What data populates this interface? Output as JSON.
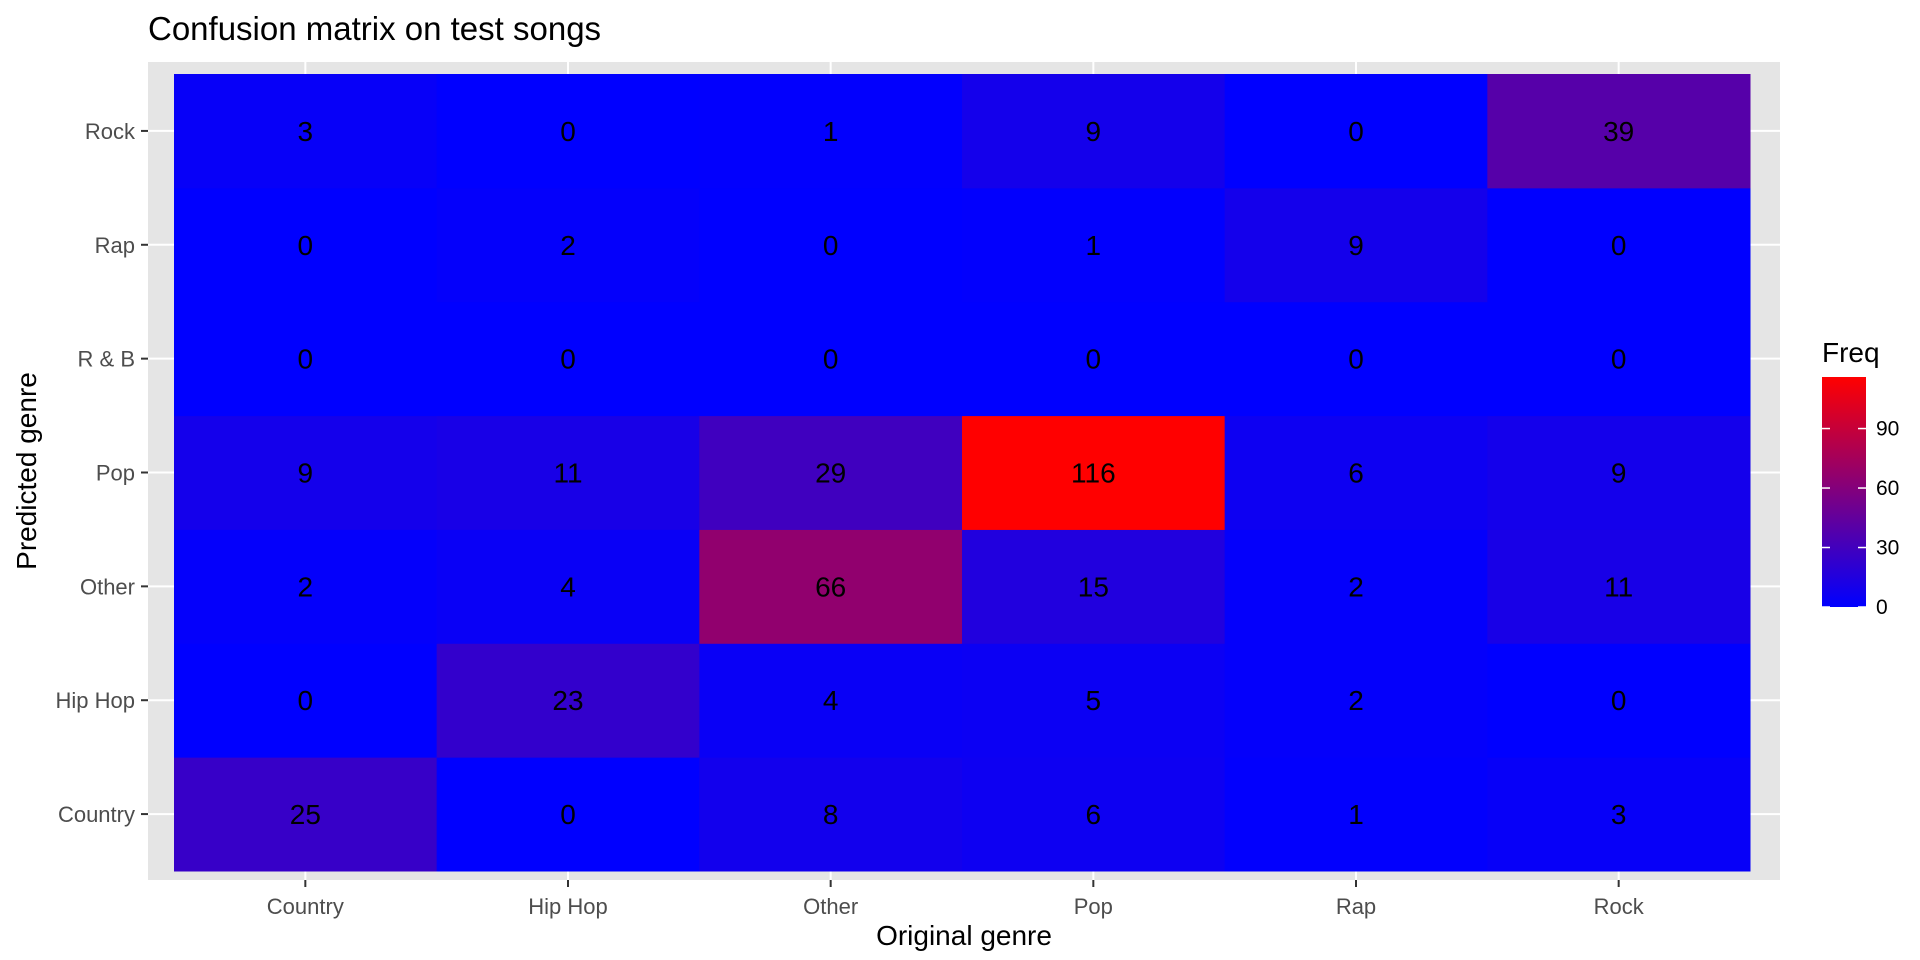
{
  "chart_data": {
    "type": "heatmap",
    "title": "Confusion matrix on test songs",
    "xlabel": "Original genre",
    "ylabel": "Predicted genre",
    "x_categories": [
      "Country",
      "Hip Hop",
      "Other",
      "Pop",
      "Rap",
      "Rock"
    ],
    "y_categories": [
      "Country",
      "Hip Hop",
      "Other",
      "Pop",
      "R & B",
      "Rap",
      "Rock"
    ],
    "values": [
      [
        25,
        0,
        8,
        6,
        1,
        3
      ],
      [
        0,
        23,
        4,
        5,
        2,
        0
      ],
      [
        2,
        4,
        66,
        15,
        2,
        11
      ],
      [
        9,
        11,
        29,
        116,
        6,
        9
      ],
      [
        0,
        0,
        0,
        0,
        0,
        0
      ],
      [
        0,
        2,
        0,
        1,
        9,
        0
      ],
      [
        3,
        0,
        1,
        9,
        0,
        39
      ]
    ],
    "legend": {
      "title": "Freq",
      "ticks": [
        0,
        30,
        60,
        90
      ],
      "range": [
        0,
        116
      ],
      "low_color": "#0000ff",
      "high_color": "#ff0000"
    },
    "panel_background": "#e5e5e5",
    "grid_color": "#ffffff"
  }
}
